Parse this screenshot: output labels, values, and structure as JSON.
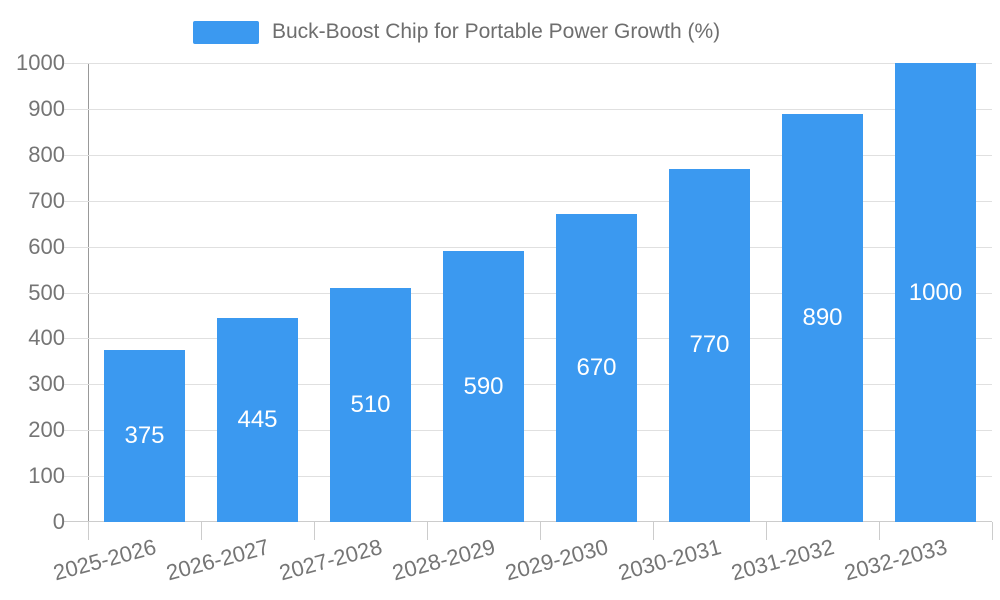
{
  "legend": {
    "position": "top-center",
    "items": [
      {
        "label": "Buck-Boost Chip for Portable Power Growth (%)",
        "color": "#3B99F0"
      }
    ]
  },
  "chart_data": {
    "type": "bar",
    "title": "Buck-Boost Chip for Portable Power Growth (%)",
    "categories": [
      "2025-2026",
      "2026-2027",
      "2027-2028",
      "2028-2029",
      "2029-2030",
      "2030-2031",
      "2031-2032",
      "2032-2033"
    ],
    "series": [
      {
        "name": "Buck-Boost Chip for Portable Power Growth (%)",
        "values": [
          375,
          445,
          510,
          590,
          670,
          770,
          890,
          1000
        ],
        "color": "#3B99F0"
      }
    ],
    "value_labels_shown": true,
    "value_label_position": "inside-center",
    "value_label_color": "#FFFFFF",
    "xlabel": "",
    "ylabel": "",
    "ylim": [
      0,
      1000
    ],
    "yticks": [
      0,
      100,
      200,
      300,
      400,
      500,
      600,
      700,
      800,
      900,
      1000
    ],
    "grid": "horizontal",
    "legend_position": "top-center",
    "x_label_rotation_deg": -15,
    "colors": {
      "axis_text": "#757575",
      "gridline": "#E0E0E0",
      "y_axis_line": "#999999",
      "x_axis_line": "#CCCCCC",
      "background": "#FFFFFF"
    }
  }
}
